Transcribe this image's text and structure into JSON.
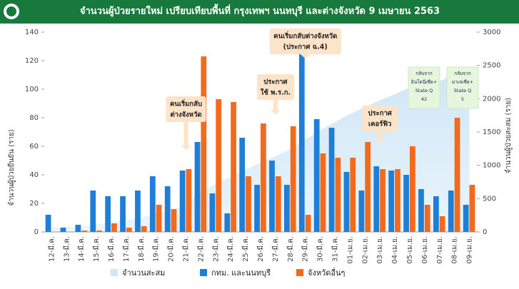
{
  "chart_data": {
    "type": "bar",
    "title": "จำนวนผู้ป่วยรายใหม่ เปรียบเทียบพื้นที่ กรุงเทพฯ นนทบุรี และต่างจังหวัด 9 เมษายน 2563",
    "y_label": "จำนวนผู้ป่วยยืนยัน (ราย)",
    "y2_label": "จำนวนผู้ป่วยสะสม (ราย)",
    "categories": [
      "12-มี.ค.",
      "13-มี.ค.",
      "14-มี.ค.",
      "15-มี.ค.",
      "16-มี.ค.",
      "17-มี.ค.",
      "18-มี.ค.",
      "19-มี.ค.",
      "20-มี.ค.",
      "21-มี.ค.",
      "22-มี.ค.",
      "23-มี.ค.",
      "24-มี.ค.",
      "25-มี.ค.",
      "26-มี.ค.",
      "27-มี.ค.",
      "28-มี.ค.",
      "29-มี.ค.",
      "30-มี.ค.",
      "31-มี.ค.",
      "01-เม.ย.",
      "02-เม.ย.",
      "03-เม.ย.",
      "04-เม.ย.",
      "05-เม.ย.",
      "06-เม.ย.",
      "07-เม.ย.",
      "08-เม.ย.",
      "09-เม.ย."
    ],
    "series": [
      {
        "name": "กทม. และนนทบุรี",
        "color": "#1f7fd6",
        "values": [
          12,
          3,
          5,
          29,
          25,
          25,
          29,
          39,
          32,
          43,
          63,
          27,
          13,
          66,
          33,
          50,
          33,
          128,
          79,
          73,
          42,
          29,
          46,
          43,
          40,
          30,
          25,
          29,
          19
        ]
      },
      {
        "name": "จังหวัดอื่นๆ",
        "color": "#f26b1d",
        "values": [
          0,
          0,
          1,
          1,
          6,
          3,
          4,
          19,
          16,
          44,
          123,
          93,
          91,
          39,
          76,
          39,
          74,
          12,
          55,
          52,
          52,
          63,
          44,
          44,
          60,
          19,
          11,
          80,
          33
        ]
      },
      {
        "name": "จำนวนสะสม",
        "type": "area",
        "axis": "y2",
        "color": "#d6ecf8",
        "values": [
          70,
          75,
          82,
          114,
          147,
          177,
          212,
          272,
          322,
          411,
          599,
          721,
          827,
          934,
          1045,
          1136,
          1245,
          1388,
          1524,
          1651,
          1771,
          1875,
          1978,
          2067,
          2169,
          2220,
          2258,
          2369,
          2423
        ]
      }
    ],
    "ylim": [
      0,
      140
    ],
    "yticks": [
      0,
      20,
      40,
      60,
      80,
      100,
      120,
      140
    ],
    "y2lim": [
      0,
      3000
    ],
    "y2ticks": [
      0,
      500,
      1000,
      1500,
      2000,
      2500,
      3000
    ],
    "annotations": [
      {
        "lines": [
          "คนเริ่มกลับ",
          "ต่างจังหวัด"
        ]
      },
      {
        "lines": [
          "ประกาศ",
          "ใช้ พ.ร.ก."
        ]
      },
      {
        "lines": [
          "คนเริ่มกลับต่างจังหวัด",
          "(ประกาศ ฉ.4)"
        ]
      },
      {
        "lines": [
          "ประกาศ",
          "เคอร์ฟิว"
        ]
      }
    ],
    "notes": [
      {
        "lines": [
          "กลับจาก",
          "อินโดนีเซีย+",
          "State Q",
          "42"
        ]
      },
      {
        "lines": [
          "กลับจาก",
          "มาเลเซีย+",
          "State Q",
          "5"
        ]
      }
    ]
  }
}
